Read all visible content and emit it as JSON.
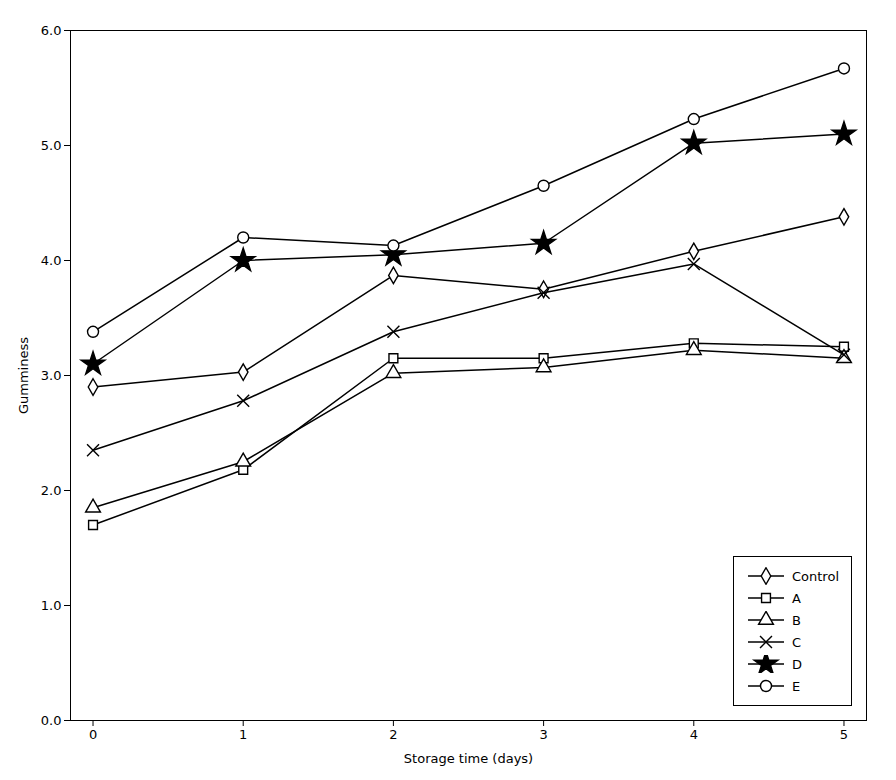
{
  "chart_data": {
    "type": "line",
    "xlabel": "Storage time (days)",
    "ylabel": "Gumminess",
    "x": [
      0,
      1,
      2,
      3,
      4,
      5
    ],
    "series": [
      {
        "name": "Control",
        "color": "#000000",
        "marker": "diamond_open",
        "values": [
          2.9,
          3.03,
          3.87,
          3.75,
          4.08,
          4.38
        ]
      },
      {
        "name": "A",
        "color": "#000000",
        "marker": "square_open",
        "values": [
          1.7,
          2.18,
          3.15,
          3.15,
          3.28,
          3.25
        ]
      },
      {
        "name": "B",
        "color": "#000000",
        "marker": "triangle_open",
        "values": [
          1.85,
          2.25,
          3.02,
          3.07,
          3.22,
          3.15
        ]
      },
      {
        "name": "C",
        "color": "#000000",
        "marker": "x",
        "values": [
          2.35,
          2.78,
          3.38,
          3.72,
          3.97,
          3.18
        ]
      },
      {
        "name": "D",
        "color": "#000000",
        "marker": "star",
        "values": [
          3.1,
          4.0,
          4.05,
          4.15,
          5.02,
          5.1
        ]
      },
      {
        "name": "E",
        "color": "#000000",
        "marker": "circle_open",
        "values": [
          3.38,
          4.2,
          4.13,
          4.65,
          5.23,
          5.67
        ]
      }
    ],
    "xlim": [
      -0.15,
      5.15
    ],
    "xticks": [
      0,
      1,
      2,
      3,
      4,
      5
    ],
    "ylim": [
      0.0,
      6.0
    ],
    "yticks": [
      {
        "value": 0.0,
        "label": "0.0"
      },
      {
        "value": 1.0,
        "label": "1.0"
      },
      {
        "value": 2.0,
        "label": "2.0"
      },
      {
        "value": 3.0,
        "label": "3.0"
      },
      {
        "value": 4.0,
        "label": "4.0"
      },
      {
        "value": 5.0,
        "label": "5.0"
      },
      {
        "value": 6.0,
        "label": "6.0"
      }
    ],
    "legend": "lower right",
    "grid": false
  }
}
